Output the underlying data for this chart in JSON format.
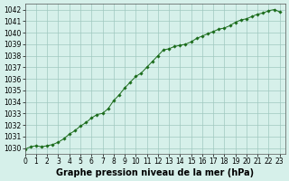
{
  "x": [
    0,
    0.5,
    1,
    1.5,
    2,
    2.5,
    3,
    3.5,
    4,
    4.5,
    5,
    5.5,
    6,
    6.5,
    7,
    7.5,
    8,
    8.5,
    9,
    9.5,
    10,
    10.5,
    11,
    11.5,
    12,
    12.5,
    13,
    13.5,
    14,
    14.5,
    15,
    15.5,
    16,
    16.5,
    17,
    17.5,
    18,
    18.5,
    19,
    19.5,
    20,
    20.5,
    21,
    21.5,
    22,
    22.5,
    23
  ],
  "y": [
    1029.9,
    1030.1,
    1030.2,
    1030.1,
    1030.2,
    1030.3,
    1030.5,
    1030.8,
    1031.2,
    1031.5,
    1031.9,
    1032.2,
    1032.6,
    1032.9,
    1033.0,
    1033.4,
    1034.1,
    1034.6,
    1035.2,
    1035.7,
    1036.2,
    1036.5,
    1037.0,
    1037.5,
    1038.0,
    1038.5,
    1038.6,
    1038.8,
    1038.9,
    1039.0,
    1039.2,
    1039.5,
    1039.7,
    1039.9,
    1040.1,
    1040.3,
    1040.4,
    1040.6,
    1040.9,
    1041.1,
    1041.2,
    1041.4,
    1041.6,
    1041.7,
    1041.9,
    1042.0,
    1041.8
  ],
  "line_color": "#1a6b1a",
  "marker_color": "#1a6b1a",
  "bg_color": "#d6f0ea",
  "grid_color": "#a0c8c0",
  "xlabel": "Graphe pression niveau de la mer (hPa)",
  "ylim": [
    1029.5,
    1042.5
  ],
  "xlim": [
    0,
    23.5
  ],
  "yticks": [
    1030,
    1031,
    1032,
    1033,
    1034,
    1035,
    1036,
    1037,
    1038,
    1039,
    1040,
    1041,
    1042
  ],
  "xticks": [
    0,
    1,
    2,
    3,
    4,
    5,
    6,
    7,
    8,
    9,
    10,
    11,
    12,
    13,
    14,
    15,
    16,
    17,
    18,
    19,
    20,
    21,
    22,
    23
  ],
  "tick_fontsize": 5.5,
  "xlabel_fontsize": 7.0
}
